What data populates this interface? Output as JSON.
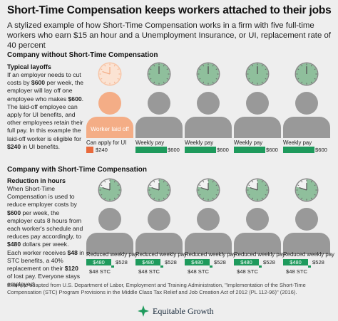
{
  "header": {
    "title": "Short-Time Compensation keeps workers attached to their jobs",
    "subtitle": "A stylized example of how Short-Time Compensation works in a firm with five full-time workers who earn $15 an hour and a Unemployment Insurance, or UI, replacement rate of 40 percent"
  },
  "section1": {
    "title": "Company without Short-Time Compensation",
    "panel_title": "Typical layoffs",
    "text_parts": [
      {
        "t": "If an employer needs to cut costs by ",
        "b": false
      },
      {
        "t": "$600",
        "b": true
      },
      {
        "t": " per week, the employer will lay off one employee who makes ",
        "b": false
      },
      {
        "t": "$600",
        "b": true
      },
      {
        "t": ". The laid-off employee can apply for UI benefits, and other employees retain their full pay. In this example the laid-off worker is eligible for ",
        "b": false
      },
      {
        "t": "$240",
        "b": true
      },
      {
        "t": " in UI benefits.",
        "b": false
      }
    ],
    "laid_off_label": "Worker laid off",
    "apply_label": "Can apply for UI",
    "apply_value": "$240",
    "weekly_label": "Weekly pay",
    "weekly_value": "$600"
  },
  "section2": {
    "title": "Company with Short-Time Compensation",
    "panel_title": "Reduction in hours",
    "text_parts": [
      {
        "t": "When Short-Time Compensation is used to reduce employer costs by ",
        "b": false
      },
      {
        "t": "$600",
        "b": true
      },
      {
        "t": " per week, the employer cuts 8 hours from each worker's schedule and reduces pay accordingly, to ",
        "b": false
      },
      {
        "t": "$480",
        "b": true
      },
      {
        "t": " dollars per week. Each worker receives ",
        "b": false
      },
      {
        "t": "$48",
        "b": true
      },
      {
        "t": " in STC benefits, a 40% replacement on their ",
        "b": false
      },
      {
        "t": "$120",
        "b": true
      },
      {
        "t": " of lost pay. Everyone stays employed.",
        "b": false
      }
    ],
    "reduced_label": "Reduced weekly pay",
    "reduced_value": "$480",
    "total_value": "$528",
    "stc_value": "$48 STC"
  },
  "footer": {
    "source": "Example adapted from U.S. Department of Labor, Employment and Training Administration, \"Implementation of the Short-Time Compensation (STC) Program Provisions in the Middle Class Tax Relief and Job Creation Act of 2012 (PL 112-96)\" (2016).",
    "logo": "Equitable Growth"
  },
  "colors": {
    "green": "#1e9a5c",
    "orange": "#e96a3c",
    "peach": "#f4ad86",
    "gray": "#999999",
    "clock_fill": "#8fbf9c"
  },
  "chart_data": {
    "type": "table",
    "scenarios": [
      {
        "name": "Company without Short-Time Compensation",
        "workers": [
          {
            "status": "Worker laid off",
            "pay_label": "Can apply for UI",
            "pay": 240
          },
          {
            "status": "employed",
            "pay_label": "Weekly pay",
            "pay": 600
          },
          {
            "status": "employed",
            "pay_label": "Weekly pay",
            "pay": 600
          },
          {
            "status": "employed",
            "pay_label": "Weekly pay",
            "pay": 600
          },
          {
            "status": "employed",
            "pay_label": "Weekly pay",
            "pay": 600
          }
        ],
        "hours_worked_fraction": [
          0,
          1,
          1,
          1,
          1
        ]
      },
      {
        "name": "Company with Short-Time Compensation",
        "workers": [
          {
            "pay_label": "Reduced weekly pay",
            "pay": 480,
            "stc": 48,
            "total": 528
          },
          {
            "pay_label": "Reduced weekly pay",
            "pay": 480,
            "stc": 48,
            "total": 528
          },
          {
            "pay_label": "Reduced weekly pay",
            "pay": 480,
            "stc": 48,
            "total": 528
          },
          {
            "pay_label": "Reduced weekly pay",
            "pay": 480,
            "stc": 48,
            "total": 528
          },
          {
            "pay_label": "Reduced weekly pay",
            "pay": 480,
            "stc": 48,
            "total": 528
          }
        ],
        "hours_worked_fraction": [
          0.8,
          0.8,
          0.8,
          0.8,
          0.8
        ]
      }
    ]
  }
}
